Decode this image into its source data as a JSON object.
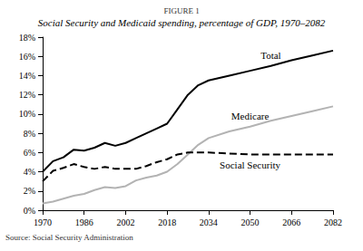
{
  "chart_data": {
    "type": "line",
    "figure_label": "FIGURE 1",
    "title": "Social Security and Medicaid spending, percentage of GDP, 1970–2082",
    "source": "Source: Social Security Administration",
    "x": [
      1970,
      1974,
      1978,
      1982,
      1986,
      1990,
      1994,
      1998,
      2002,
      2006,
      2010,
      2014,
      2018,
      2022,
      2026,
      2030,
      2034,
      2042,
      2050,
      2058,
      2066,
      2074,
      2082
    ],
    "series": [
      {
        "name": "Total",
        "color": "#000000",
        "line_style": "solid",
        "values": [
          4.0,
          5.1,
          5.5,
          6.3,
          6.2,
          6.5,
          7.0,
          6.7,
          7.0,
          7.5,
          8.0,
          8.5,
          9.0,
          10.5,
          12.0,
          13.0,
          13.5,
          14.0,
          14.5,
          15.0,
          15.6,
          16.1,
          16.6
        ]
      },
      {
        "name": "Medicare",
        "color": "#b3b3b3",
        "line_style": "solid",
        "values": [
          0.7,
          0.9,
          1.2,
          1.5,
          1.7,
          2.1,
          2.4,
          2.3,
          2.5,
          3.1,
          3.4,
          3.6,
          4.0,
          4.8,
          5.8,
          6.8,
          7.5,
          8.2,
          8.7,
          9.3,
          9.8,
          10.3,
          10.8
        ]
      },
      {
        "name": "Social Security",
        "color": "#000000",
        "line_style": "dashed",
        "values": [
          3.0,
          4.1,
          4.4,
          4.8,
          4.5,
          4.3,
          4.5,
          4.3,
          4.3,
          4.3,
          4.6,
          5.0,
          5.3,
          5.8,
          6.0,
          6.0,
          6.0,
          5.9,
          5.8,
          5.8,
          5.8,
          5.8,
          5.8
        ]
      }
    ],
    "xlim": [
      1970,
      2082
    ],
    "xticks": [
      1970,
      1986,
      2002,
      2018,
      2034,
      2050,
      2066,
      2082
    ],
    "ylim": [
      0,
      18
    ],
    "yticks": [
      {
        "value": 0,
        "label": "0%"
      },
      {
        "value": 2,
        "label": "2%"
      },
      {
        "value": 4,
        "label": "4%"
      },
      {
        "value": 6,
        "label": "6%"
      },
      {
        "value": 8,
        "label": "8%"
      },
      {
        "value": 10,
        "label": "10%"
      },
      {
        "value": 12,
        "label": "12%"
      },
      {
        "value": 14,
        "label": "14%"
      },
      {
        "value": 16,
        "label": "16%"
      },
      {
        "value": 18,
        "label": "18%"
      }
    ],
    "grid": false
  }
}
